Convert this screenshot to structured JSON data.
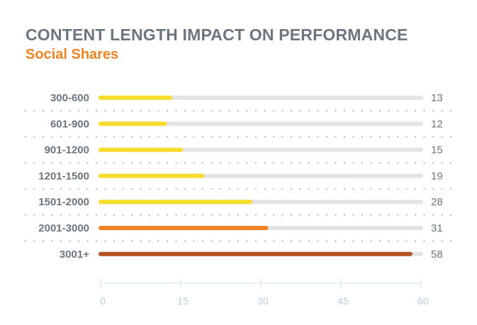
{
  "colors": {
    "title": "#6b7681",
    "subtitle": "#ef8322",
    "track": "#e4e4e4",
    "dots": "#b8b8b8",
    "axis": "#cfe3ee",
    "tick_text": "#b9d1de",
    "label_text": "#6b7681"
  },
  "chart_data": {
    "type": "bar",
    "orientation": "horizontal",
    "title": "CONTENT LENGTH IMPACT ON PERFORMANCE",
    "subtitle": "Social Shares",
    "categories": [
      "300-600",
      "601-900",
      "901-1200",
      "1201-1500",
      "1501-2000",
      "2001-3000",
      "3001+"
    ],
    "values": [
      13,
      12,
      15,
      19,
      28,
      31,
      58
    ],
    "bar_colors": [
      "#f7dc2c",
      "#f7dc2c",
      "#f7dc2c",
      "#f7dc2c",
      "#f7dc2c",
      "#ef8322",
      "#b65327"
    ],
    "xlim": [
      0,
      60
    ],
    "xticks": [
      0,
      15,
      30,
      45,
      60
    ],
    "grid": false
  }
}
